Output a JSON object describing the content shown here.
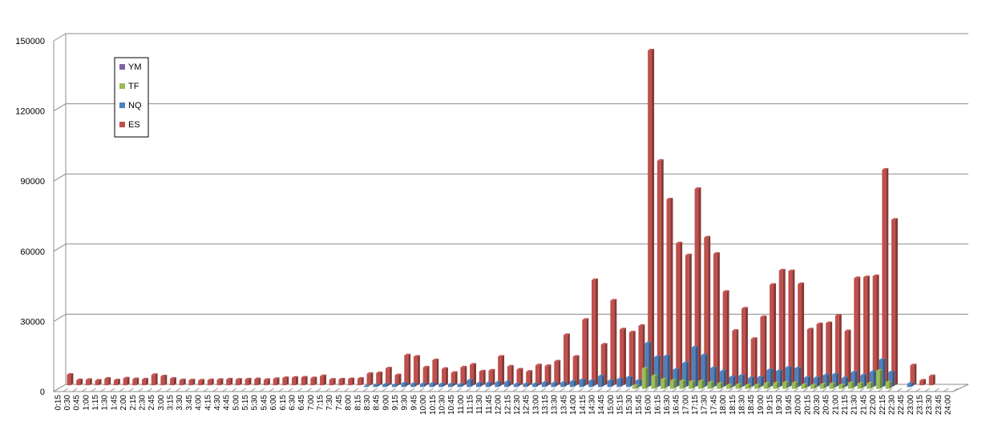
{
  "chart_data": {
    "type": "bar",
    "grid": true,
    "legend_position": "left",
    "ylim": [
      0,
      150000
    ],
    "yticks": [
      0,
      30000,
      60000,
      90000,
      120000,
      150000
    ],
    "categories": [
      "0:15",
      "0:30",
      "0:45",
      "1:00",
      "1:15",
      "1:30",
      "1:45",
      "2:00",
      "2:15",
      "2:30",
      "2:45",
      "3:00",
      "3:15",
      "3:30",
      "3:45",
      "4:00",
      "4:15",
      "4:30",
      "4:45",
      "5:00",
      "5:15",
      "5:30",
      "5:45",
      "6:00",
      "6:15",
      "6:30",
      "6:45",
      "7:00",
      "7:15",
      "7:30",
      "7:45",
      "8:00",
      "8:15",
      "8:30",
      "8:45",
      "9:00",
      "9:15",
      "9:30",
      "9:45",
      "10:00",
      "10:15",
      "10:30",
      "10:45",
      "11:00",
      "11:15",
      "11:30",
      "11:45",
      "12:00",
      "12:15",
      "12:30",
      "12:45",
      "13:00",
      "13:15",
      "13:30",
      "13:45",
      "14:00",
      "14:15",
      "14:30",
      "14:45",
      "15:00",
      "15:15",
      "15:30",
      "15:45",
      "16:00",
      "16:15",
      "16:30",
      "16:45",
      "17:00",
      "17:15",
      "17:30",
      "17:45",
      "18:00",
      "18:15",
      "18:30",
      "18:45",
      "19:00",
      "19:15",
      "19:30",
      "19:45",
      "20:00",
      "20:15",
      "20:30",
      "20:45",
      "21:00",
      "21:15",
      "21:30",
      "21:45",
      "22:00",
      "22:15",
      "22:30",
      "22:45",
      "23:00",
      "23:15",
      "23:30",
      "23:45",
      "24:00"
    ],
    "legend_order": [
      "YM",
      "TF",
      "NQ",
      "ES"
    ],
    "series": [
      {
        "name": "ES",
        "color": "#c0504d",
        "values": [
          4500,
          2200,
          2300,
          2000,
          2800,
          2100,
          2900,
          2600,
          2500,
          4400,
          3800,
          2800,
          2200,
          2100,
          2000,
          2200,
          2300,
          2500,
          2400,
          2500,
          2600,
          2300,
          2700,
          3100,
          3200,
          3300,
          3000,
          3900,
          2400,
          2500,
          2600,
          2800,
          4900,
          5200,
          7200,
          4300,
          12800,
          12200,
          7600,
          10700,
          7000,
          5300,
          7600,
          8800,
          5900,
          6300,
          12200,
          8000,
          6700,
          5800,
          8500,
          8200,
          10200,
          21500,
          12200,
          28000,
          45000,
          17400,
          36200,
          23900,
          22600,
          25400,
          143200,
          96000,
          79500,
          60700,
          55600,
          84000,
          63200,
          56200,
          40000,
          23300,
          32800,
          19800,
          29200,
          43000,
          49100,
          48800,
          43300,
          23900,
          26100,
          26600,
          29800,
          23100,
          45800,
          46200,
          46700,
          92200,
          70800,
          0,
          8500,
          2000,
          3900,
          0,
          0,
          0
        ]
      },
      {
        "name": "NQ",
        "color": "#4f81bd",
        "values": [
          0,
          0,
          0,
          0,
          0,
          0,
          0,
          0,
          0,
          0,
          0,
          0,
          0,
          0,
          0,
          0,
          0,
          0,
          0,
          0,
          0,
          0,
          0,
          0,
          0,
          0,
          0,
          0,
          0,
          0,
          0,
          0,
          300,
          800,
          1000,
          800,
          1500,
          1300,
          1200,
          1400,
          1200,
          1100,
          1000,
          2800,
          1500,
          1600,
          1900,
          2100,
          1100,
          1200,
          1300,
          1800,
          1600,
          1800,
          2300,
          3000,
          2600,
          4600,
          2600,
          3300,
          4100,
          2700,
          18700,
          12800,
          13200,
          7400,
          10200,
          17000,
          13600,
          8100,
          6700,
          4200,
          4800,
          3800,
          4100,
          7200,
          6800,
          8300,
          8000,
          4000,
          3800,
          5000,
          5400,
          3800,
          6200,
          5000,
          6400,
          11600,
          6300,
          0,
          1400,
          0,
          0,
          0,
          0,
          0
        ]
      },
      {
        "name": "TF",
        "color": "#9bbb59",
        "values": [
          0,
          0,
          0,
          0,
          0,
          0,
          0,
          0,
          0,
          0,
          0,
          0,
          0,
          0,
          0,
          0,
          0,
          0,
          0,
          0,
          0,
          0,
          0,
          0,
          0,
          0,
          0,
          0,
          0,
          0,
          0,
          0,
          0,
          0,
          0,
          0,
          0,
          0,
          0,
          0,
          0,
          0,
          0,
          0,
          0,
          0,
          0,
          0,
          0,
          0,
          0,
          0,
          0,
          0,
          0,
          0,
          0,
          0,
          0,
          0,
          0,
          1200,
          8600,
          5500,
          4000,
          3500,
          3300,
          3000,
          3200,
          2600,
          2200,
          1500,
          1700,
          1500,
          1600,
          2300,
          2400,
          2600,
          2500,
          1700,
          1500,
          1900,
          2100,
          1600,
          2500,
          2200,
          2300,
          7700,
          2800,
          0,
          0,
          0,
          0,
          0,
          0,
          0
        ]
      },
      {
        "name": "YM",
        "color": "#8064a2",
        "values": [
          0,
          0,
          0,
          0,
          0,
          0,
          0,
          0,
          0,
          0,
          0,
          0,
          0,
          0,
          0,
          0,
          0,
          0,
          0,
          0,
          0,
          0,
          0,
          0,
          0,
          0,
          0,
          0,
          0,
          0,
          0,
          0,
          0,
          0,
          0,
          0,
          0,
          0,
          0,
          0,
          0,
          0,
          0,
          0,
          0,
          0,
          0,
          0,
          0,
          0,
          0,
          0,
          0,
          0,
          0,
          0,
          0,
          0,
          0,
          0,
          0,
          0,
          0,
          0,
          0,
          0,
          0,
          0,
          0,
          0,
          0,
          0,
          0,
          0,
          0,
          0,
          0,
          0,
          0,
          0,
          0,
          0,
          0,
          0,
          0,
          0,
          0,
          0,
          0,
          0,
          0,
          0,
          0,
          0,
          0,
          0
        ]
      }
    ]
  }
}
